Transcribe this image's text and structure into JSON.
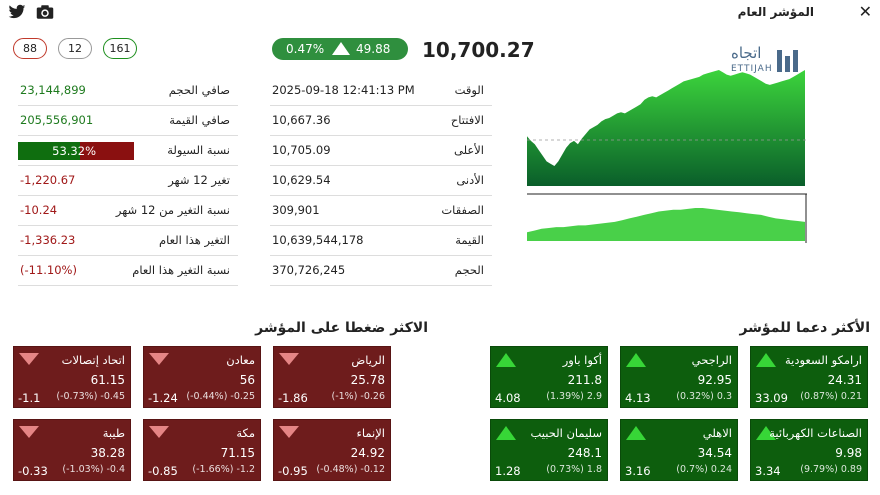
{
  "header": {
    "title": "المؤشر العام",
    "close_icon": "close-icon",
    "twitter_icon": "twitter-icon",
    "camera_icon": "camera-icon"
  },
  "pills": {
    "declines": "88",
    "unchanged": "12",
    "advances": "161"
  },
  "index": {
    "value": "10,700.27",
    "change": "49.88",
    "change_pct": "0.47%"
  },
  "logo": {
    "text": "اتجاه",
    "latin": "ETTIJAH"
  },
  "left_stats": [
    {
      "label": "صافي الحجم",
      "value": "23,144,899",
      "tone": "green"
    },
    {
      "label": "صافي القيمة",
      "value": "205,556,901",
      "tone": "green"
    },
    {
      "label": "نسبة السيولة",
      "value": "53.32%",
      "tone": "bar",
      "fraction": 0.5332
    },
    {
      "label": "تغير 12 شهر",
      "value": "-1,220.67",
      "tone": "red"
    },
    {
      "label": "نسبة التغير من 12 شهر",
      "value": "-10.24",
      "tone": "red"
    },
    {
      "label": "التغير هذا العام",
      "value": "-1,336.23",
      "tone": "red"
    },
    {
      "label": "نسبة التغير هذا العام",
      "value": "(-11.10%)",
      "tone": "red"
    }
  ],
  "mid_stats": [
    {
      "label": "الوقت",
      "value": "2025-09-18 12:41:13 PM"
    },
    {
      "label": "الافتتاح",
      "value": "10,667.36"
    },
    {
      "label": "الأعلى",
      "value": "10,705.09"
    },
    {
      "label": "الأدنى",
      "value": "10,629.54"
    },
    {
      "label": "الصفقات",
      "value": "309,901"
    },
    {
      "label": "القيمة",
      "value": "10,639,544,178"
    },
    {
      "label": "الحجم",
      "value": "370,726,245"
    }
  ],
  "sections": {
    "support": "الأكثر دعما للمؤشر",
    "pressure": "الاكثر ضغطا على المؤشر"
  },
  "support": [
    {
      "name": "ارامكو السعودية",
      "price": "24.31",
      "pct": "(0.87%) 0.21",
      "contrib": "33.09"
    },
    {
      "name": "الراجحي",
      "price": "92.95",
      "pct": "(0.32%) 0.3",
      "contrib": "4.13"
    },
    {
      "name": "أكوا باور",
      "price": "211.8",
      "pct": "(1.39%) 2.9",
      "contrib": "4.08"
    },
    {
      "name": "الصناعات الكهربائية",
      "price": "9.98",
      "pct": "(9.79%) 0.89",
      "contrib": "3.34"
    },
    {
      "name": "الاهلي",
      "price": "34.54",
      "pct": "(0.7%) 0.24",
      "contrib": "3.16"
    },
    {
      "name": "سليمان الحبيب",
      "price": "248.1",
      "pct": "(0.73%) 1.8",
      "contrib": "1.28"
    }
  ],
  "pressure": [
    {
      "name": "الرياض",
      "price": "25.78",
      "pct": "(-1%) -0.26",
      "contrib": "-1.86"
    },
    {
      "name": "معادن",
      "price": "56",
      "pct": "(-0.44%) -0.25",
      "contrib": "-1.24"
    },
    {
      "name": "اتحاد إتصالات",
      "price": "61.15",
      "pct": "(-0.73%) -0.45",
      "contrib": "-1.1"
    },
    {
      "name": "الإنماء",
      "price": "24.92",
      "pct": "(-0.48%) -0.12",
      "contrib": "-0.95"
    },
    {
      "name": "مكة",
      "price": "71.15",
      "pct": "(-1.66%) -1.2",
      "contrib": "-0.85"
    },
    {
      "name": "طيبة",
      "price": "38.28",
      "pct": "(-1.03%) -0.4",
      "contrib": "-0.33"
    }
  ],
  "chart_data": {
    "type": "area",
    "series": [
      {
        "values": [
          42,
          38,
          35,
          30,
          25,
          20,
          18,
          16,
          20,
          26,
          32,
          36,
          38,
          35,
          40,
          44,
          48,
          50,
          52,
          55,
          57,
          58,
          60,
          62,
          63,
          62,
          64,
          66,
          68,
          70,
          74,
          76,
          77,
          76,
          78,
          80,
          82,
          84,
          86,
          88,
          90,
          91,
          92,
          93,
          94,
          96,
          97,
          98,
          99,
          100,
          98,
          96,
          95,
          96,
          97,
          98,
          97,
          96,
          94,
          92,
          90,
          88,
          87,
          88,
          89,
          90,
          91,
          92,
          94,
          96,
          98,
          100
        ]
      }
    ],
    "volume": [
      10,
      12,
      14,
      15,
      16,
      16,
      17,
      18,
      18,
      19,
      20,
      21,
      22,
      24,
      26,
      28,
      30,
      32,
      34,
      35,
      36,
      36,
      37,
      38,
      38,
      37,
      36,
      35,
      34,
      33,
      32,
      31,
      30,
      28,
      26,
      25,
      24,
      23,
      22
    ]
  }
}
